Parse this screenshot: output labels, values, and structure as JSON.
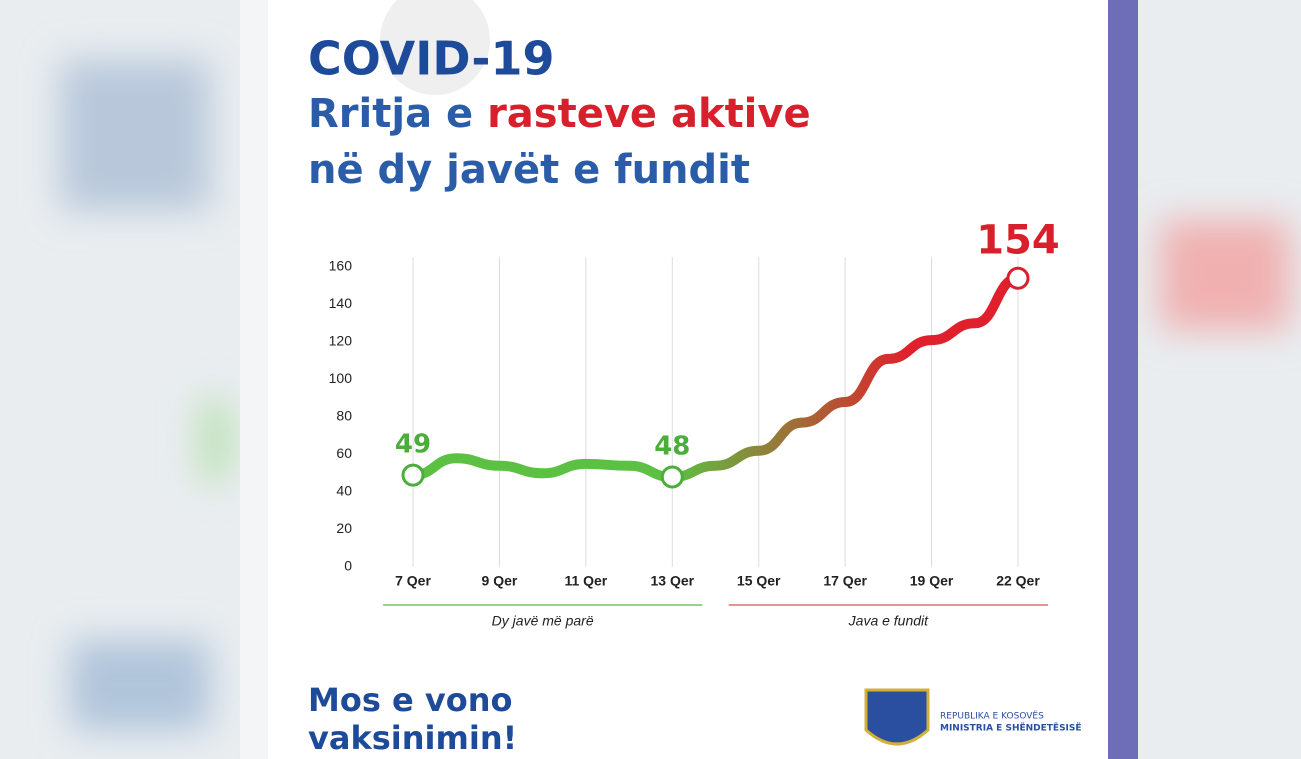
{
  "chart_data": {
    "type": "line",
    "title": "COVID-19",
    "subtitle": [
      "Rritja e",
      "rasteve aktive",
      "në dy javët e fundit"
    ],
    "categories": [
      "7 Qer",
      null,
      "9 Qer",
      null,
      "11 Qer",
      null,
      "13 Qer",
      null,
      "15 Qer",
      null,
      "17 Qer",
      null,
      "19 Qer",
      null,
      "22 Qer"
    ],
    "series": [
      {
        "name": "Raste aktive",
        "colors": [
          "#5cc043",
          "#e0202c"
        ],
        "values": [
          49,
          58,
          54,
          50,
          55,
          54,
          48,
          54,
          62,
          77,
          88,
          111,
          121,
          130,
          154
        ],
        "value_labels": [
          "49",
          null,
          null,
          null,
          null,
          null,
          "48",
          null,
          null,
          null,
          null,
          null,
          null,
          null,
          "154"
        ],
        "label_colors": [
          "#4cae3a",
          null,
          null,
          null,
          null,
          null,
          "#4cae3a",
          null,
          null,
          null,
          null,
          null,
          null,
          null,
          "#d8202c"
        ]
      }
    ],
    "ylim": [
      0,
      160
    ],
    "yticks": [
      0,
      20,
      40,
      60,
      80,
      100,
      120,
      140,
      160
    ],
    "grid": true,
    "periods": [
      {
        "label": "Dy javë më parë",
        "from": "7 Qer",
        "to": "13 Qer",
        "color": "#7cc06a"
      },
      {
        "label": "Java e fundit",
        "from": "15 Qer",
        "to": "22 Qer",
        "color": "#e07070"
      }
    ]
  },
  "footer": {
    "slogan": [
      "Mos e vono",
      "vaksinimin!"
    ],
    "org": [
      "REPUBLIKA E KOSOVËS",
      "MINISTRIA E SHËNDETËSISË"
    ]
  }
}
